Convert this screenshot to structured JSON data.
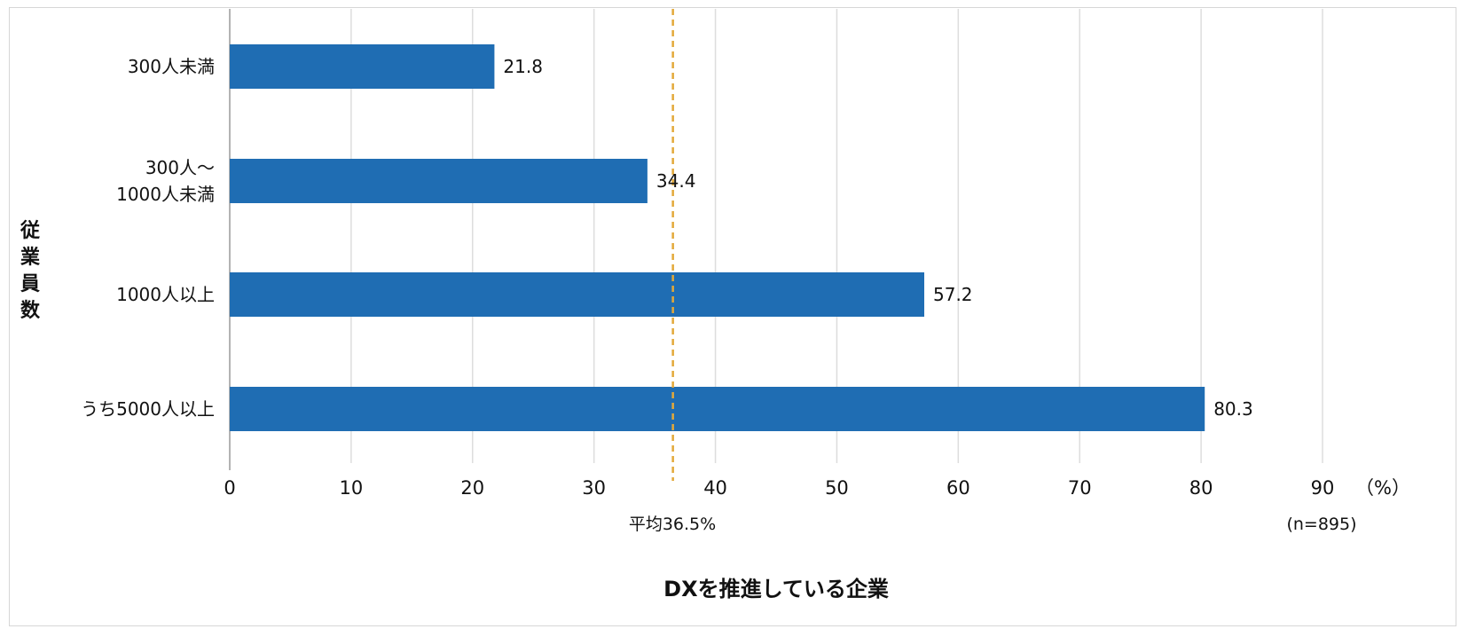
{
  "chart_data": {
    "type": "bar",
    "orientation": "horizontal",
    "categories": [
      "300人未満",
      "300人〜\n1000人未満",
      "1000人以上",
      "うち5000人以上"
    ],
    "values": [
      21.8,
      34.4,
      57.2,
      80.3
    ],
    "value_labels": [
      "21.8",
      "34.4",
      "57.2",
      "80.3"
    ],
    "xlim": [
      0,
      90
    ],
    "xticks": [
      0,
      10,
      20,
      30,
      40,
      50,
      60,
      70,
      80,
      90
    ],
    "xunit": "（%）",
    "ylabel": "従業員数",
    "xlabel": "DXを推進している企業",
    "sample_note": "(n=895)",
    "average": {
      "value": 36.5,
      "label": "平均36.5%"
    },
    "grid": true,
    "colors": {
      "bar": "#1F6DB3",
      "average_line": "#E3A93A",
      "grid": "#DDDDDD",
      "axis": "#9A9A9A"
    }
  }
}
